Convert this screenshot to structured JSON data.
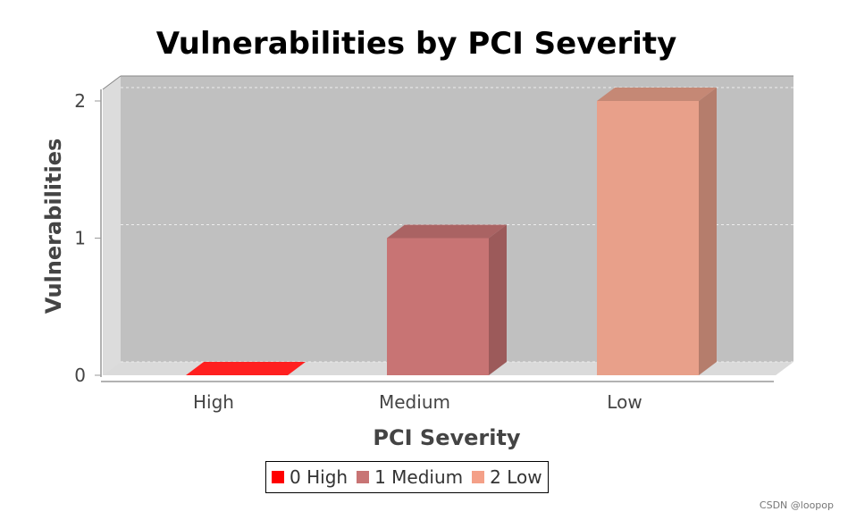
{
  "chart_data": {
    "type": "bar",
    "title": "Vulnerabilities by PCI Severity",
    "xlabel": "PCI Severity",
    "ylabel": "Vulnerabilities",
    "categories": [
      "High",
      "Medium",
      "Low"
    ],
    "values": [
      0,
      1,
      2
    ],
    "colors": [
      "#ff2020",
      "#c87474",
      "#e8a08a"
    ],
    "ylim": [
      0,
      2
    ],
    "yticks": [
      "0",
      "1",
      "2"
    ],
    "grid": true,
    "style": "3d",
    "legend_position": "bottom",
    "legend": [
      {
        "count": "0",
        "label": "High",
        "color": "#ff0000"
      },
      {
        "count": "1",
        "label": "Medium",
        "color": "#c87474"
      },
      {
        "count": "2",
        "label": "Low",
        "color": "#f4a088"
      }
    ]
  },
  "watermark": "CSDN @loopop"
}
